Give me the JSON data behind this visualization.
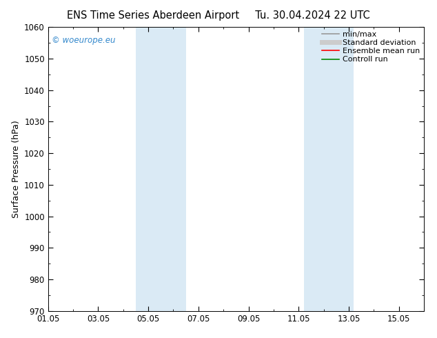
{
  "title": "ENS Time Series Aberdeen Airport",
  "title2": "Tu. 30.04.2024 22 UTC",
  "ylabel": "Surface Pressure (hPa)",
  "ylim": [
    970,
    1060
  ],
  "yticks": [
    970,
    980,
    990,
    1000,
    1010,
    1020,
    1030,
    1040,
    1050,
    1060
  ],
  "xlim_start": 0,
  "xlim_end": 15,
  "xtick_labels": [
    "01.05",
    "03.05",
    "05.05",
    "07.05",
    "09.05",
    "11.05",
    "13.05",
    "15.05"
  ],
  "xtick_positions": [
    0,
    2,
    4,
    6,
    8,
    10,
    12,
    14
  ],
  "shaded_regions": [
    {
      "xmin": 3.5,
      "xmax": 5.5,
      "color": "#daeaf5"
    },
    {
      "xmin": 10.2,
      "xmax": 12.2,
      "color": "#daeaf5"
    }
  ],
  "watermark": "© woeurope.eu",
  "watermark_color": "#3388cc",
  "legend_entries": [
    {
      "label": "min/max",
      "color": "#999999",
      "lw": 1.2,
      "style": "-"
    },
    {
      "label": "Standard deviation",
      "color": "#cccccc",
      "lw": 5,
      "style": "-"
    },
    {
      "label": "Ensemble mean run",
      "color": "#ff0000",
      "lw": 1.2,
      "style": "-"
    },
    {
      "label": "Controll run",
      "color": "#008800",
      "lw": 1.2,
      "style": "-"
    }
  ],
  "bg_color": "#ffffff",
  "plot_bg_color": "#ffffff",
  "title_fontsize": 10.5,
  "ylabel_fontsize": 9,
  "tick_fontsize": 8.5,
  "legend_fontsize": 8
}
